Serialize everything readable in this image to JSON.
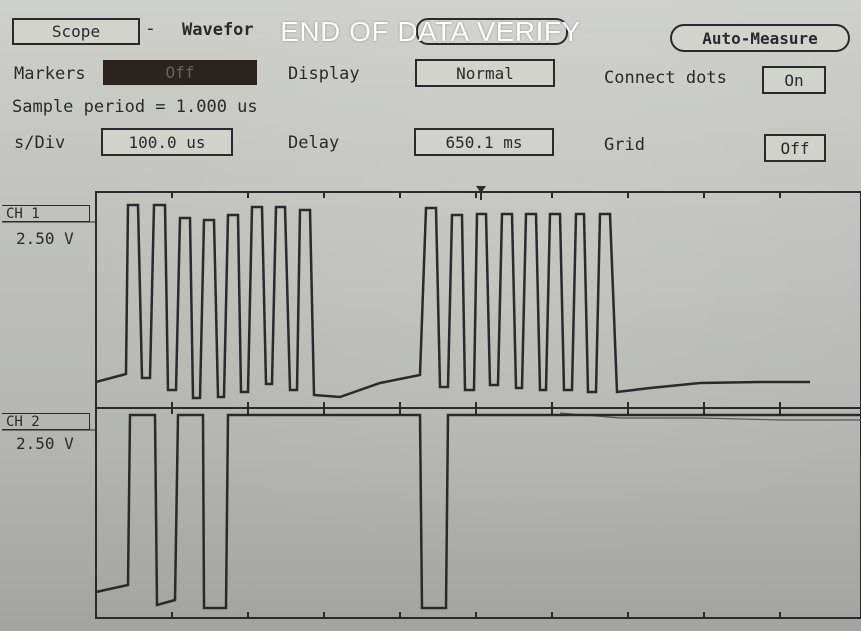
{
  "overlay": {
    "title": "END OF DATA VERIFY"
  },
  "toolbar": {
    "scope_label": "Scope",
    "dash": "-",
    "waveform_label": "Wavefor",
    "auto_measure_label": "Auto-Measure"
  },
  "row1": {
    "markers_label": "Markers",
    "markers_value": "Off",
    "display_label": "Display",
    "display_value": "Normal",
    "connect_dots_label": "Connect dots",
    "connect_dots_value": "On"
  },
  "sample_period": "Sample period = 1.000 us",
  "row3": {
    "sdiv_label": "s/Div",
    "sdiv_value": "100.0 us",
    "delay_label": "Delay",
    "delay_value": "650.1 ms",
    "grid_label": "Grid",
    "grid_value": "Off"
  },
  "channels": [
    {
      "name": "CH 1",
      "scale": "2.50 V"
    },
    {
      "name": "CH 2",
      "scale": "2.50 V"
    }
  ],
  "colors": {
    "trace": "#2a2a2a",
    "screen": "#c3c4c0",
    "overlay_text": "#ffffff"
  }
}
